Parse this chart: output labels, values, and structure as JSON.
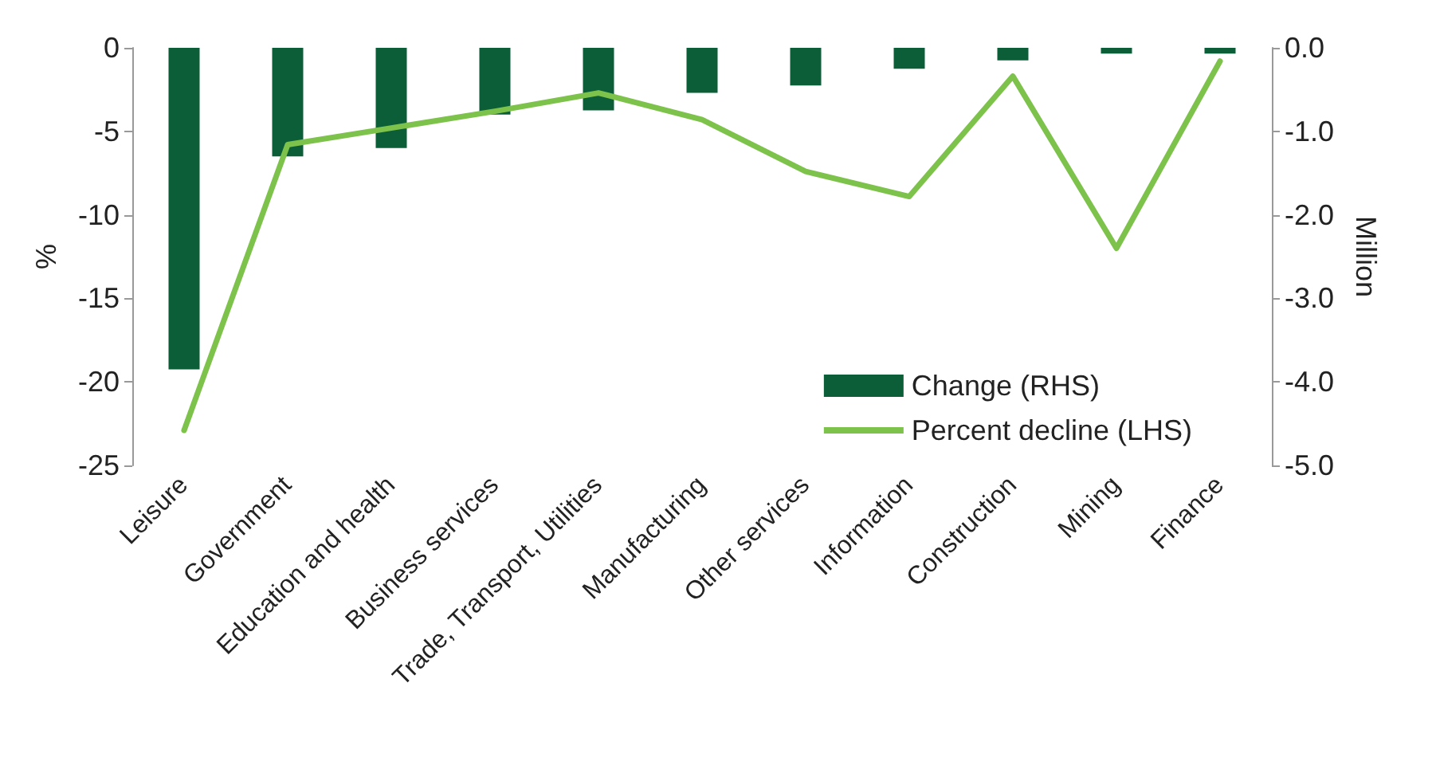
{
  "chart_data": {
    "type": "bar",
    "ylabel": "%",
    "y2label": "Million",
    "categories": [
      "Leisure",
      "Government",
      "Education and health",
      "Business services",
      "Trade, Transport, Utilities",
      "Manufacturing",
      "Other services",
      "Information",
      "Construction",
      "Mining",
      "Finance"
    ],
    "series": [
      {
        "name": "Change (RHS)",
        "axis": "y2",
        "color": "#0b5e37",
        "values": [
          -3.85,
          -1.3,
          -1.2,
          -0.8,
          -0.75,
          -0.54,
          -0.45,
          -0.25,
          -0.15,
          -0.07,
          -0.07
        ]
      },
      {
        "name": "Percent decline (LHS)",
        "type": "line",
        "color": "#7dc24b",
        "values": [
          -22.9,
          -5.8,
          -4.8,
          -3.8,
          -2.7,
          -4.3,
          -7.4,
          -8.9,
          -1.7,
          -12,
          -0.8
        ]
      }
    ],
    "ylim": [
      -25,
      0
    ],
    "yticks": [
      0,
      -5,
      -10,
      -15,
      -20,
      -25
    ],
    "y2lim": [
      -5,
      0
    ],
    "y2ticks": [
      {
        "value": 0,
        "label": "0.0"
      },
      {
        "value": -1,
        "label": "-1.0"
      },
      {
        "value": -2,
        "label": "-2.0"
      },
      {
        "value": -3,
        "label": "-3.0"
      },
      {
        "value": -4,
        "label": "-4.0"
      },
      {
        "value": -5,
        "label": "-5.0"
      }
    ],
    "grid": false,
    "legend": "bottom right",
    "marker": "none",
    "line_style": "solid"
  }
}
